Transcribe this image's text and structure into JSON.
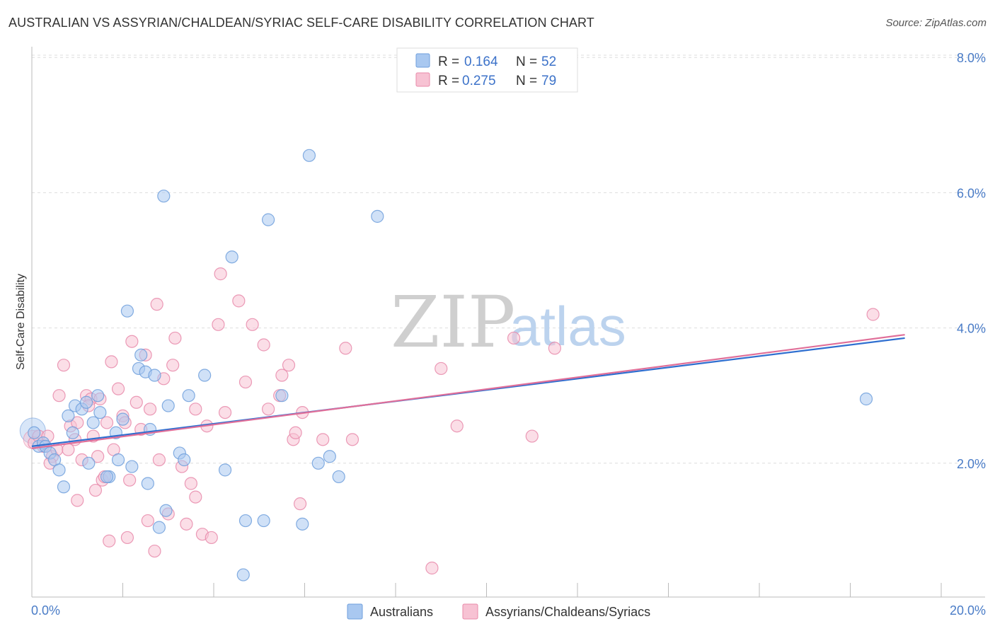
{
  "title": "AUSTRALIAN VS ASSYRIAN/CHALDEAN/SYRIAC SELF-CARE DISABILITY CORRELATION CHART",
  "source": "Source: ZipAtlas.com",
  "watermark": {
    "zip": "ZIP",
    "atlas": "atlas"
  },
  "colors": {
    "australians_fill": "#a9c8f0",
    "australians_stroke": "#6f9fdc",
    "australians_line": "#2f6fd0",
    "assyrians_fill": "#f7c2d3",
    "assyrians_stroke": "#e88aaa",
    "assyrians_line": "#e06f99",
    "tick_label": "#4a7cc7",
    "grid": "#dddddd"
  },
  "legend": {
    "rows": [
      {
        "r_label": "R = ",
        "r_value": "0.164",
        "n_label": "N = ",
        "n_value": "52"
      },
      {
        "r_label": "R = ",
        "r_value": "0.275",
        "n_label": "N = ",
        "n_value": "79"
      }
    ]
  },
  "bottom_legend": [
    "Australians",
    "Assyrians/Chaldeans/Syriacs"
  ],
  "chart_data": {
    "type": "scatter",
    "xlabel": "",
    "ylabel": "Self-Care Disability",
    "xlim": [
      0,
      20
    ],
    "ylim": [
      0,
      8.2
    ],
    "x_tick_labels": [
      "0.0%",
      "20.0%"
    ],
    "y_ticks": [
      2,
      4,
      6,
      8
    ],
    "y_tick_labels": [
      "2.0%",
      "4.0%",
      "6.0%",
      "8.0%"
    ],
    "grid": "horizontal dashed",
    "legend_position": "top-center",
    "series": [
      {
        "name": "Australians",
        "trend": {
          "x": [
            0,
            19.2
          ],
          "y": [
            2.25,
            3.85
          ]
        },
        "points": [
          [
            0.05,
            2.45
          ],
          [
            0.15,
            2.25
          ],
          [
            0.25,
            2.3
          ],
          [
            0.3,
            2.25
          ],
          [
            0.4,
            2.15
          ],
          [
            0.5,
            2.05
          ],
          [
            0.6,
            1.9
          ],
          [
            0.7,
            1.65
          ],
          [
            0.8,
            2.7
          ],
          [
            0.9,
            2.45
          ],
          [
            0.95,
            2.85
          ],
          [
            1.1,
            2.8
          ],
          [
            1.2,
            2.9
          ],
          [
            1.25,
            2.0
          ],
          [
            1.35,
            2.6
          ],
          [
            1.45,
            3.0
          ],
          [
            1.5,
            2.75
          ],
          [
            1.7,
            1.8
          ],
          [
            1.65,
            1.8
          ],
          [
            1.85,
            2.45
          ],
          [
            1.9,
            2.05
          ],
          [
            2.0,
            2.65
          ],
          [
            2.1,
            4.25
          ],
          [
            2.2,
            1.95
          ],
          [
            2.35,
            3.4
          ],
          [
            2.4,
            3.6
          ],
          [
            2.5,
            3.35
          ],
          [
            2.55,
            1.7
          ],
          [
            2.6,
            2.5
          ],
          [
            2.7,
            3.3
          ],
          [
            2.8,
            1.05
          ],
          [
            2.9,
            5.95
          ],
          [
            2.95,
            1.3
          ],
          [
            3.0,
            2.85
          ],
          [
            3.25,
            2.15
          ],
          [
            3.35,
            2.05
          ],
          [
            3.45,
            3.0
          ],
          [
            3.8,
            3.3
          ],
          [
            4.25,
            1.9
          ],
          [
            4.4,
            5.05
          ],
          [
            4.65,
            0.35
          ],
          [
            4.7,
            1.15
          ],
          [
            5.1,
            1.15
          ],
          [
            5.2,
            5.6
          ],
          [
            5.5,
            3.0
          ],
          [
            5.95,
            1.1
          ],
          [
            6.1,
            6.55
          ],
          [
            6.3,
            2.0
          ],
          [
            6.55,
            2.1
          ],
          [
            6.75,
            1.8
          ],
          [
            7.6,
            5.65
          ],
          [
            18.35,
            2.95
          ]
        ]
      },
      {
        "name": "Assyrians/Chaldeans/Syriacs",
        "trend": {
          "x": [
            0,
            19.2
          ],
          "y": [
            2.22,
            3.9
          ]
        },
        "points": [
          [
            0.05,
            2.3
          ],
          [
            0.15,
            2.4
          ],
          [
            0.25,
            2.25
          ],
          [
            0.35,
            2.4
          ],
          [
            0.45,
            2.1
          ],
          [
            0.55,
            2.2
          ],
          [
            0.6,
            3.0
          ],
          [
            0.7,
            3.45
          ],
          [
            0.8,
            2.2
          ],
          [
            0.85,
            2.55
          ],
          [
            0.95,
            2.35
          ],
          [
            1.0,
            2.6
          ],
          [
            1.1,
            2.05
          ],
          [
            1.0,
            1.45
          ],
          [
            1.2,
            3.0
          ],
          [
            1.3,
            2.95
          ],
          [
            1.35,
            2.4
          ],
          [
            1.4,
            1.6
          ],
          [
            1.45,
            2.1
          ],
          [
            1.5,
            2.95
          ],
          [
            1.55,
            1.75
          ],
          [
            1.6,
            1.8
          ],
          [
            1.65,
            2.6
          ],
          [
            1.7,
            0.85
          ],
          [
            1.75,
            3.5
          ],
          [
            1.8,
            2.2
          ],
          [
            1.9,
            3.1
          ],
          [
            2.0,
            2.7
          ],
          [
            2.1,
            0.9
          ],
          [
            2.15,
            1.75
          ],
          [
            2.2,
            3.8
          ],
          [
            2.3,
            2.9
          ],
          [
            2.4,
            2.5
          ],
          [
            2.5,
            3.6
          ],
          [
            2.55,
            1.15
          ],
          [
            2.6,
            2.8
          ],
          [
            2.7,
            0.7
          ],
          [
            2.75,
            4.35
          ],
          [
            2.8,
            2.05
          ],
          [
            2.9,
            3.25
          ],
          [
            3.0,
            1.25
          ],
          [
            3.1,
            3.45
          ],
          [
            3.15,
            3.85
          ],
          [
            3.3,
            1.95
          ],
          [
            3.4,
            1.1
          ],
          [
            3.5,
            1.7
          ],
          [
            3.6,
            1.5
          ],
          [
            3.75,
            0.95
          ],
          [
            3.85,
            2.55
          ],
          [
            3.95,
            0.9
          ],
          [
            4.1,
            4.05
          ],
          [
            4.15,
            4.8
          ],
          [
            4.25,
            2.75
          ],
          [
            4.55,
            4.4
          ],
          [
            4.85,
            4.05
          ],
          [
            5.1,
            3.75
          ],
          [
            5.2,
            2.8
          ],
          [
            5.45,
            3.0
          ],
          [
            5.5,
            3.3
          ],
          [
            5.65,
            3.45
          ],
          [
            5.9,
            1.4
          ],
          [
            5.95,
            2.75
          ],
          [
            6.4,
            2.35
          ],
          [
            6.9,
            3.7
          ],
          [
            7.05,
            2.35
          ],
          [
            5.75,
            2.35
          ],
          [
            8.8,
            0.45
          ],
          [
            9.0,
            3.4
          ],
          [
            9.35,
            2.55
          ],
          [
            10.6,
            3.85
          ],
          [
            11.0,
            2.4
          ],
          [
            11.5,
            3.7
          ],
          [
            18.5,
            4.2
          ],
          [
            1.25,
            2.85
          ],
          [
            2.05,
            2.6
          ],
          [
            3.6,
            2.8
          ],
          [
            4.7,
            3.2
          ],
          [
            5.8,
            2.45
          ],
          [
            0.4,
            2.0
          ]
        ]
      }
    ]
  }
}
